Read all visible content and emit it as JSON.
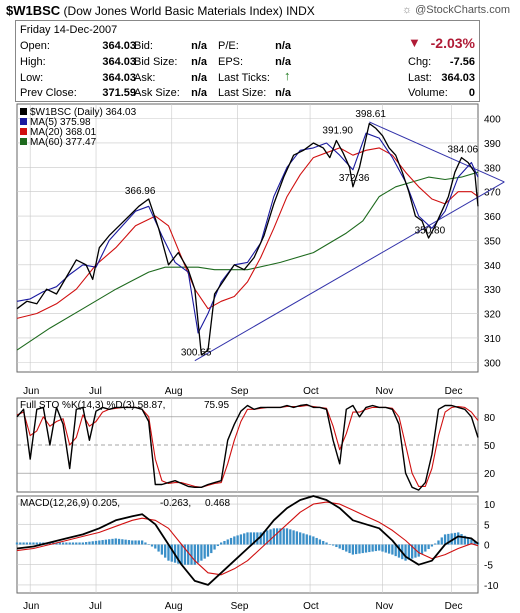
{
  "header": {
    "symbol": "$W1BSC",
    "name": "(Dow Jones World Basic Materials Index)",
    "exchange": "INDX",
    "brand": "@StockCharts.com"
  },
  "quote": {
    "date": "Friday   14-Dec-2007",
    "open_label": "Open:",
    "open": "364.03",
    "high_label": "High:",
    "high": "364.03",
    "low_label": "Low:",
    "low": "364.03",
    "prev_label": "Prev Close:",
    "prev": "371.59",
    "bid_label": "Bid:",
    "bid": "n/a",
    "bidsize_label": "Bid Size:",
    "bidsize": "n/a",
    "ask_label": "Ask:",
    "ask": "n/a",
    "asksize_label": "Ask Size:",
    "asksize": "n/a",
    "pe_label": "P/E:",
    "pe": "n/a",
    "eps_label": "EPS:",
    "eps": "n/a",
    "lastticks_label": "Last Ticks:",
    "lastsize_label": "Last Size:",
    "lastsize": "n/a",
    "change_pct": "-2.03%",
    "chg_label": "Chg:",
    "chg": "-7.56",
    "last_label": "Last:",
    "last": "364.03",
    "volume_label": "Volume:",
    "volume": "0"
  },
  "colors": {
    "price": "#000000",
    "ma5": "#1a1aa0",
    "ma20": "#d01010",
    "ma60": "#1e6a1e",
    "down": "#b01b36",
    "up": "#1e7a1e",
    "trend": "#3333aa",
    "macd_hist": "#3a8fc8",
    "grid": "#c8c8c8"
  },
  "chart_data": [
    {
      "type": "line",
      "legend": [
        {
          "label": "$W1BSC (Daily) 364.03",
          "color": "#000000"
        },
        {
          "label": "MA(5) 375.98",
          "color": "#1a1aa0"
        },
        {
          "label": "MA(20) 368.01",
          "color": "#d01010"
        },
        {
          "label": "MA(60) 377.47",
          "color": "#1e6a1e"
        }
      ],
      "x_ticks": [
        "Jun",
        "Jul",
        "Aug",
        "Sep",
        "Oct",
        "Nov",
        "Dec"
      ],
      "x_tick_days": [
        4,
        24,
        47,
        67,
        89,
        111,
        132
      ],
      "y_ticks": [
        300,
        310,
        320,
        330,
        340,
        350,
        360,
        370,
        380,
        390,
        400
      ],
      "ylim": [
        296,
        406
      ],
      "annotations": [
        {
          "text": "366.96",
          "x": 37,
          "y": 366.96
        },
        {
          "text": "300.65",
          "x": 54,
          "y": 300.65
        },
        {
          "text": "391.90",
          "x": 97,
          "y": 391.9
        },
        {
          "text": "398.61",
          "x": 107,
          "y": 398.61
        },
        {
          "text": "372.36",
          "x": 102,
          "y": 372.36
        },
        {
          "text": "350.80",
          "x": 125,
          "y": 350.8
        },
        {
          "text": "384.06",
          "x": 135,
          "y": 384.06
        }
      ],
      "series": [
        {
          "name": "$W1BSC",
          "x": [
            0,
            3,
            6,
            9,
            12,
            15,
            18,
            21,
            23,
            25,
            28,
            31,
            34,
            37,
            40,
            43,
            46,
            49,
            52,
            54,
            56,
            58,
            60,
            63,
            66,
            69,
            72,
            75,
            78,
            81,
            84,
            87,
            90,
            93,
            95,
            97,
            99,
            101,
            102,
            104,
            106,
            107,
            109,
            111,
            113,
            115,
            117,
            119,
            121,
            123,
            125,
            127,
            129,
            131,
            133,
            135,
            137,
            139,
            140
          ],
          "y": [
            322,
            325,
            324,
            330,
            328,
            335,
            342,
            340,
            334,
            347,
            352,
            356,
            360,
            364,
            367,
            355,
            340,
            345,
            338,
            330,
            303,
            305,
            328,
            334,
            340,
            338,
            343,
            352,
            365,
            376,
            385,
            387,
            390,
            388,
            384,
            391,
            386,
            380,
            372,
            380,
            392,
            398,
            396,
            393,
            388,
            385,
            378,
            370,
            360,
            358,
            351,
            356,
            362,
            368,
            378,
            384,
            382,
            378,
            364
          ]
        },
        {
          "name": "MA(5)",
          "x": [
            0,
            4,
            8,
            12,
            16,
            20,
            24,
            28,
            32,
            36,
            40,
            44,
            48,
            52,
            55,
            58,
            62,
            66,
            70,
            74,
            78,
            82,
            86,
            90,
            94,
            98,
            102,
            106,
            110,
            114,
            118,
            122,
            126,
            130,
            134,
            138,
            140
          ],
          "y": [
            325,
            326,
            329,
            331,
            336,
            340,
            339,
            350,
            356,
            362,
            364,
            352,
            341,
            337,
            312,
            320,
            333,
            340,
            341,
            349,
            368,
            380,
            387,
            388,
            390,
            385,
            379,
            394,
            392,
            384,
            374,
            360,
            355,
            362,
            376,
            382,
            376
          ]
        },
        {
          "name": "MA(20)",
          "x": [
            0,
            6,
            12,
            18,
            24,
            30,
            36,
            42,
            46,
            50,
            54,
            58,
            62,
            66,
            70,
            74,
            78,
            82,
            86,
            90,
            94,
            98,
            102,
            106,
            110,
            114,
            118,
            122,
            126,
            130,
            134,
            138,
            140
          ],
          "y": [
            318,
            320,
            324,
            330,
            340,
            347,
            356,
            360,
            356,
            343,
            330,
            322,
            325,
            327,
            333,
            343,
            355,
            368,
            377,
            384,
            386,
            388,
            385,
            387,
            388,
            385,
            378,
            372,
            367,
            365,
            370,
            370,
            368
          ]
        },
        {
          "name": "MA(60)",
          "x": [
            0,
            10,
            20,
            30,
            40,
            45,
            50,
            55,
            60,
            70,
            80,
            90,
            100,
            105,
            110,
            115,
            120,
            125,
            130,
            135,
            140
          ],
          "y": [
            305,
            314,
            322,
            330,
            337,
            339,
            339,
            339,
            338,
            338,
            341,
            345,
            353,
            358,
            368,
            372,
            374,
            376,
            375,
            376,
            378
          ]
        }
      ],
      "trendlines": [
        {
          "from": [
            54,
            300.65
          ],
          "to": [
            148,
            374
          ]
        },
        {
          "from": [
            107,
            398.61
          ],
          "to": [
            148,
            374
          ]
        }
      ]
    },
    {
      "type": "line",
      "legend": [
        {
          "label": "Full STO %K(14,3) %D(3) 58.87,",
          "color": "#000000"
        },
        {
          "label": "75.95",
          "color": "#d01010"
        }
      ],
      "y_ticks": [
        20,
        50,
        80
      ],
      "ylim": [
        0,
        100
      ],
      "series": [
        {
          "name": "%K",
          "x": [
            0,
            2,
            4,
            6,
            8,
            10,
            12,
            14,
            16,
            18,
            20,
            22,
            24,
            26,
            28,
            30,
            32,
            34,
            36,
            38,
            40,
            42,
            44,
            46,
            48,
            50,
            52,
            54,
            56,
            58,
            60,
            62,
            64,
            66,
            68,
            70,
            72,
            74,
            76,
            78,
            80,
            82,
            84,
            86,
            88,
            90,
            92,
            94,
            96,
            98,
            100,
            102,
            104,
            106,
            108,
            110,
            112,
            114,
            116,
            118,
            120,
            122,
            124,
            126,
            128,
            130,
            132,
            134,
            136,
            138,
            140
          ],
          "y": [
            80,
            88,
            35,
            88,
            90,
            50,
            90,
            72,
            25,
            88,
            90,
            55,
            86,
            90,
            88,
            90,
            90,
            90,
            90,
            88,
            75,
            8,
            8,
            10,
            12,
            9,
            6,
            5,
            5,
            8,
            10,
            12,
            55,
            72,
            86,
            92,
            88,
            90,
            90,
            90,
            90,
            92,
            90,
            92,
            93,
            90,
            90,
            88,
            55,
            30,
            88,
            92,
            80,
            90,
            92,
            90,
            90,
            88,
            72,
            20,
            5,
            2,
            10,
            40,
            88,
            92,
            92,
            90,
            88,
            80,
            58
          ]
        },
        {
          "name": "%D",
          "x": [
            0,
            2,
            4,
            6,
            8,
            10,
            12,
            14,
            16,
            18,
            20,
            22,
            24,
            26,
            28,
            30,
            32,
            34,
            36,
            38,
            40,
            42,
            44,
            46,
            48,
            50,
            52,
            54,
            56,
            58,
            60,
            62,
            64,
            66,
            68,
            70,
            72,
            74,
            76,
            78,
            80,
            82,
            84,
            86,
            88,
            90,
            92,
            94,
            96,
            98,
            100,
            102,
            104,
            106,
            108,
            110,
            112,
            114,
            116,
            118,
            120,
            122,
            124,
            126,
            128,
            130,
            132,
            134,
            136,
            138,
            140
          ],
          "y": [
            82,
            85,
            60,
            65,
            80,
            70,
            75,
            78,
            50,
            58,
            82,
            70,
            75,
            85,
            88,
            89,
            90,
            90,
            90,
            88,
            80,
            35,
            12,
            9,
            10,
            10,
            8,
            6,
            5,
            7,
            9,
            10,
            30,
            55,
            75,
            88,
            88,
            89,
            90,
            90,
            90,
            91,
            91,
            91,
            92,
            91,
            90,
            89,
            70,
            45,
            62,
            85,
            85,
            88,
            90,
            90,
            90,
            89,
            80,
            50,
            20,
            6,
            6,
            25,
            60,
            85,
            90,
            91,
            90,
            85,
            76
          ]
        }
      ]
    },
    {
      "type": "line",
      "legend": [
        {
          "label": "MACD(12,26,9) 0.205,",
          "color": "#000000"
        },
        {
          "label": "-0.263,",
          "color": "#d01010"
        },
        {
          "label": "0.468",
          "color": "#3a8fc8"
        }
      ],
      "y_ticks": [
        -10,
        -5,
        0,
        5,
        10
      ],
      "ylim": [
        -12,
        12
      ],
      "series": [
        {
          "name": "MACD",
          "x": [
            0,
            5,
            10,
            15,
            20,
            25,
            30,
            35,
            38,
            42,
            46,
            50,
            54,
            58,
            62,
            66,
            70,
            74,
            78,
            82,
            86,
            90,
            94,
            98,
            102,
            106,
            110,
            114,
            118,
            122,
            126,
            130,
            134,
            138,
            140
          ],
          "y": [
            -1,
            -0.5,
            0.5,
            1.5,
            2.5,
            4,
            6,
            7,
            7.5,
            5,
            0,
            -5,
            -9,
            -10,
            -7,
            -4,
            -1,
            2,
            6,
            9,
            11,
            12,
            11,
            9,
            6,
            5,
            4,
            1,
            -3,
            -5,
            -4,
            0,
            2,
            1.5,
            0.2
          ]
        },
        {
          "name": "Signal",
          "x": [
            0,
            5,
            10,
            15,
            20,
            25,
            30,
            35,
            38,
            42,
            46,
            50,
            54,
            58,
            62,
            66,
            70,
            74,
            78,
            82,
            86,
            90,
            94,
            98,
            102,
            106,
            110,
            114,
            118,
            122,
            126,
            130,
            134,
            138,
            140
          ],
          "y": [
            -1.5,
            -1,
            0,
            1,
            2,
            3,
            4.5,
            6,
            6.5,
            6,
            4,
            0,
            -4,
            -7,
            -7.5,
            -6,
            -4,
            -1,
            2,
            5,
            8,
            10,
            10.5,
            10,
            8.5,
            7,
            5.5,
            3.5,
            1,
            -2,
            -3.5,
            -2.5,
            -1,
            0.2,
            -0.3
          ]
        },
        {
          "name": "Histogram",
          "x": [
            0,
            5,
            10,
            15,
            20,
            25,
            30,
            35,
            38,
            42,
            46,
            50,
            54,
            58,
            62,
            66,
            70,
            74,
            78,
            82,
            86,
            90,
            94,
            98,
            102,
            106,
            110,
            114,
            118,
            122,
            126,
            130,
            134,
            138,
            140
          ],
          "y": [
            0.5,
            0.5,
            0.5,
            0.5,
            0.5,
            1,
            1.5,
            1,
            1,
            -1,
            -4,
            -5,
            -5,
            -3,
            0.5,
            2,
            3,
            3,
            4,
            4,
            3,
            2,
            0.5,
            -1,
            -2.5,
            -2,
            -1.5,
            -2.5,
            -4,
            -3,
            -0.5,
            2.5,
            3,
            1.3,
            0.5
          ]
        }
      ]
    }
  ],
  "month_labels_mid": [
    "Jun",
    "Jul",
    "Aug",
    "Sep",
    "Oct",
    "Nov",
    "Dec"
  ],
  "month_labels_bottom": [
    "Jun",
    "Jul",
    "Aug",
    "Sep",
    "Oct",
    "Nov",
    "Dec"
  ]
}
